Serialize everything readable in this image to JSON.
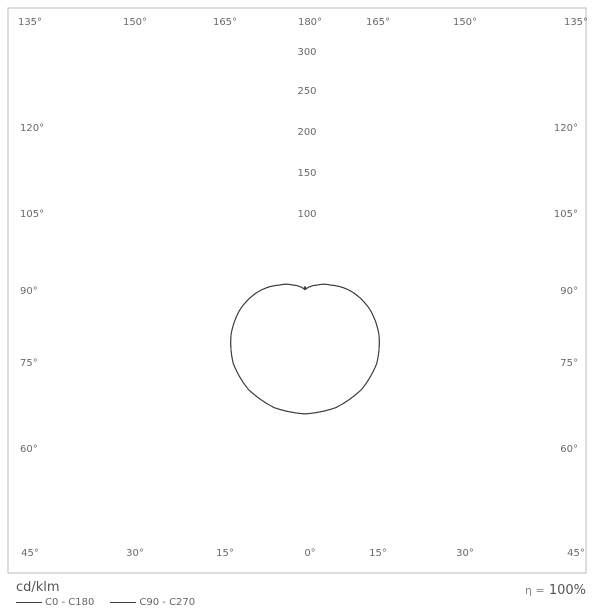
{
  "chart_data": {
    "type": "polar",
    "angle_labels_top": [
      "135°",
      "150°",
      "165°",
      "180°",
      "165°",
      "150°",
      "135°"
    ],
    "angle_labels_bottom": [
      "45°",
      "30°",
      "15°",
      "0°",
      "15°",
      "30°",
      "45°"
    ],
    "angle_labels_left": [
      "120°",
      "105°",
      "90°",
      "75°",
      "60°"
    ],
    "angle_labels_right": [
      "120°",
      "105°",
      "90°",
      "75°",
      "60°"
    ],
    "radial_ticks": [
      "100",
      "150",
      "200",
      "250",
      "300"
    ],
    "radial_tick_values": [
      100,
      150,
      200,
      250,
      300
    ],
    "radial_max": 363,
    "unit": "cd/klm",
    "efficiency_symbol": "η =",
    "efficiency_value": "100%",
    "series": [
      {
        "name": "C0 - C180",
        "gamma_deg": [
          0,
          15,
          30,
          45,
          60,
          75,
          90,
          105,
          120,
          135,
          150,
          165,
          175,
          180
        ],
        "cd_per_klm": [
          160,
          157,
          148,
          133,
          112,
          88,
          62,
          35,
          18,
          10,
          6,
          4,
          6,
          3
        ]
      },
      {
        "name": "C90 - C270",
        "gamma_deg": [
          0,
          15,
          30,
          45,
          60,
          75,
          90,
          105,
          120,
          135,
          150,
          165,
          175,
          180
        ],
        "cd_per_klm": [
          160,
          157,
          148,
          133,
          112,
          88,
          62,
          35,
          18,
          10,
          6,
          4,
          6,
          3
        ]
      }
    ]
  }
}
